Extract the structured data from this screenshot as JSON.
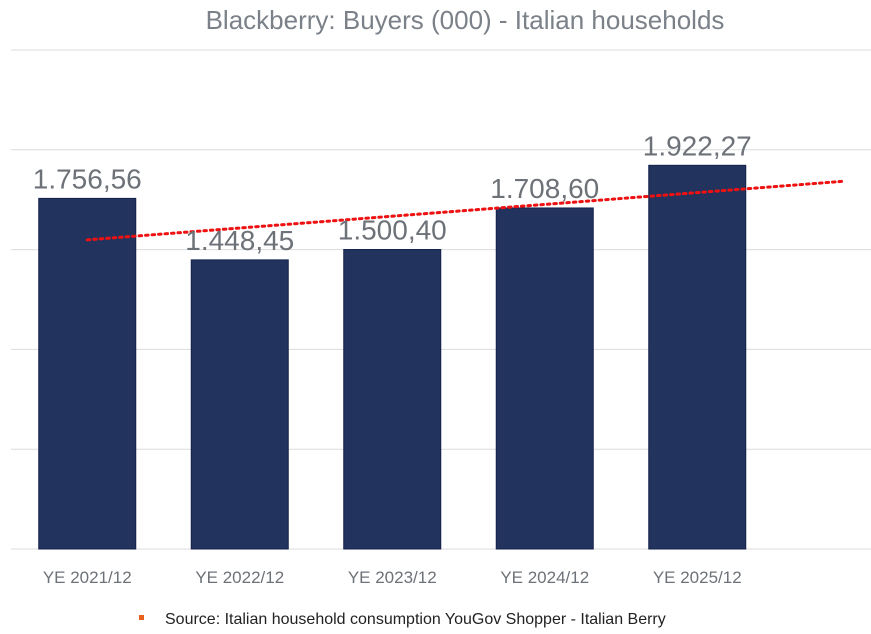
{
  "chart_data": {
    "type": "bar",
    "title": "Blackberry: Buyers (000) - Italian households",
    "categories": [
      "YE 2021/12",
      "YE 2022/12",
      "YE 2023/12",
      "YE 2024/12",
      "YE 2025/12"
    ],
    "values": [
      1756.56,
      1448.45,
      1500.4,
      1708.6,
      1922.27
    ],
    "data_labels": [
      "1.756,56",
      "1.448,45",
      "1.500,40",
      "1.708,60",
      "1.922,27"
    ],
    "xlabel": "",
    "ylabel": "",
    "ylim": [
      0,
      2500
    ],
    "grid_step": 500,
    "grid": true,
    "bar_color": "#22335e",
    "trendline": {
      "type": "linear",
      "style": "dotted",
      "color": "#ee1111",
      "forward_periods": 1
    },
    "source_note": "Source: Italian household consumption YouGov Shopper - Italian Berry",
    "source_marker_color": "#e8601c"
  }
}
